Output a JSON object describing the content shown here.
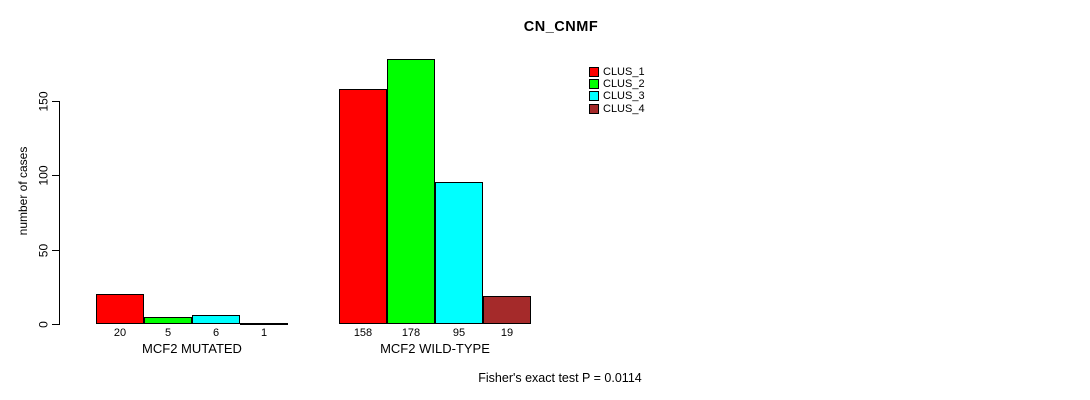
{
  "figure": {
    "background": "#FFFFFF",
    "text_color": "#000000"
  },
  "chart_data": {
    "type": "bar",
    "title": "CN_CNMF",
    "xlabel": "",
    "ylabel": "number of cases",
    "yticks": [
      0,
      50,
      100,
      150
    ],
    "ylim": [
      0,
      185
    ],
    "grid": false,
    "legend_position": "top-right",
    "bar_value_labels_shown": true,
    "categories": [
      "MCF2 MUTATED",
      "MCF2 WILD-TYPE"
    ],
    "series": [
      {
        "name": "CLUS_1",
        "color": "#FF0000",
        "values": [
          20,
          158
        ]
      },
      {
        "name": "CLUS_2",
        "color": "#00FF00",
        "values": [
          5,
          178
        ]
      },
      {
        "name": "CLUS_3",
        "color": "#00FFFF",
        "values": [
          6,
          95
        ]
      },
      {
        "name": "CLUS_4",
        "color": "#A52A2A",
        "values": [
          1,
          19
        ]
      }
    ],
    "annotation": "Fisher's exact test P = 0.0114"
  }
}
